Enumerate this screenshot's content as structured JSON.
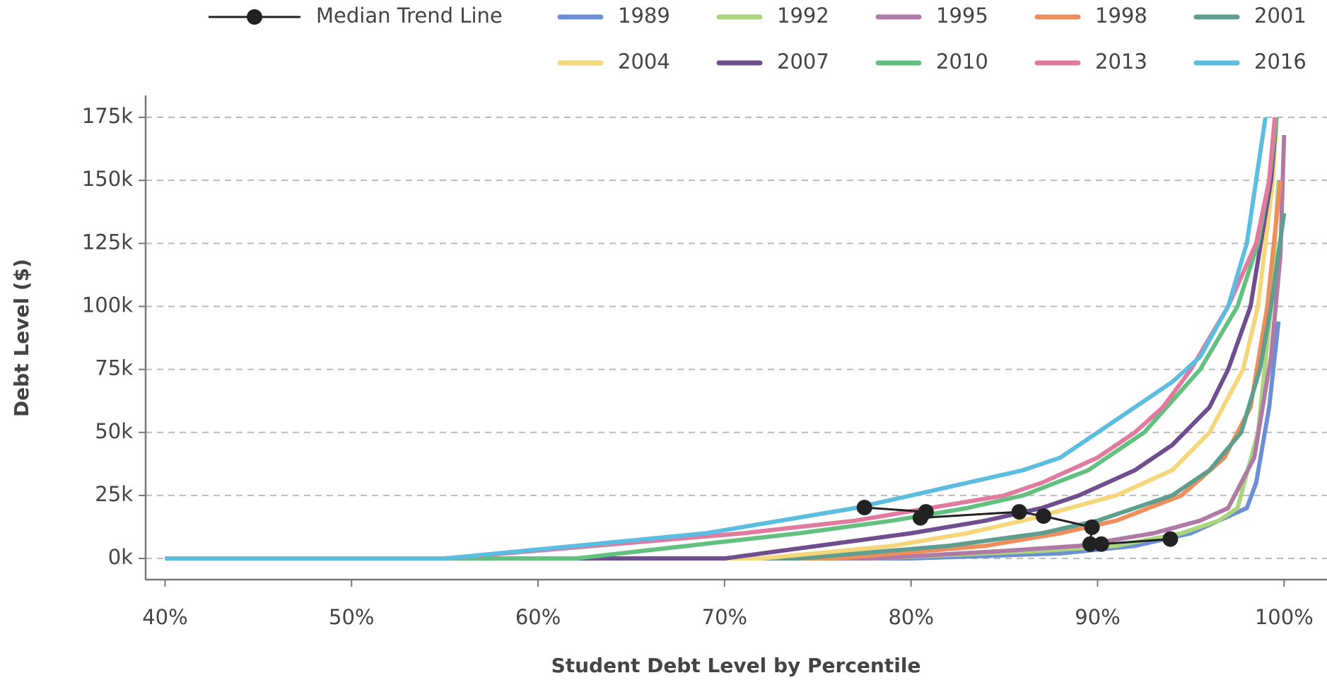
{
  "chart_data": {
    "type": "line",
    "x_label": "Student Debt Level by Percentile",
    "y_label": "Debt Level ($)",
    "xlim": [
      38.96,
      102.3
    ],
    "ylim": [
      -8400,
      183700
    ],
    "xticks": [
      {
        "value": 40,
        "label": "40%"
      },
      {
        "value": 50,
        "label": "50%"
      },
      {
        "value": 60,
        "label": "60%"
      },
      {
        "value": 70,
        "label": "70%"
      },
      {
        "value": 80,
        "label": "80%"
      },
      {
        "value": 90,
        "label": "90%"
      },
      {
        "value": 100,
        "label": "100%"
      }
    ],
    "yticks": [
      {
        "value": 0,
        "label": "0k"
      },
      {
        "value": 25000,
        "label": "25k"
      },
      {
        "value": 50000,
        "label": "50k"
      },
      {
        "value": 75000,
        "label": "75k"
      },
      {
        "value": 100000,
        "label": "100k"
      },
      {
        "value": 125000,
        "label": "125k"
      },
      {
        "value": 150000,
        "label": "150k"
      },
      {
        "value": 175000,
        "label": "175k"
      }
    ],
    "grid": true,
    "series": [
      {
        "name": "1989",
        "color": "#6a8fd4",
        "x": [
          40,
          80,
          88,
          92,
          95,
          98,
          98.5,
          99.2,
          99.7
        ],
        "values": [
          0,
          0,
          2000,
          5000,
          10000,
          20000,
          30000,
          60000,
          94000
        ]
      },
      {
        "name": "1992",
        "color": "#a9d67f",
        "x": [
          40,
          78,
          87,
          91,
          94.5,
          96.5,
          97.5,
          98.6,
          99.3,
          99.7
        ],
        "values": [
          0,
          0,
          3000,
          5000,
          10000,
          15000,
          20000,
          50000,
          100000,
          150000
        ]
      },
      {
        "name": "1995",
        "color": "#b07aa6",
        "x": [
          40,
          78,
          85,
          89,
          93,
          95.5,
          97,
          98.4,
          99.3,
          99.8,
          100
        ],
        "values": [
          0,
          0,
          3000,
          5000,
          10000,
          15000,
          20000,
          40000,
          80000,
          120000,
          168000
        ]
      },
      {
        "name": "1998",
        "color": "#ee8e5c",
        "x": [
          40,
          76,
          84,
          88,
          91,
          94.5,
          96.8,
          98.2,
          99.1,
          99.8
        ],
        "values": [
          0,
          0,
          5000,
          10000,
          15000,
          25000,
          40000,
          60000,
          100000,
          150000
        ]
      },
      {
        "name": "2001",
        "color": "#5f9e8f",
        "x": [
          40,
          74,
          82,
          87,
          90,
          94,
          96,
          97.7,
          98.7,
          99.3,
          100
        ],
        "values": [
          0,
          0,
          5000,
          10000,
          15000,
          25000,
          35000,
          50000,
          75000,
          100000,
          137000
        ]
      },
      {
        "name": "2004",
        "color": "#f6d67a",
        "x": [
          40,
          72,
          79,
          83,
          86,
          88.5,
          91,
          94,
          96,
          97.8,
          98.6,
          99.4,
          99.6
        ],
        "values": [
          0,
          0,
          5000,
          10000,
          15000,
          20000,
          25000,
          35000,
          50000,
          75000,
          100000,
          150000,
          175000
        ]
      },
      {
        "name": "2007",
        "color": "#6f4e8f",
        "x": [
          40,
          70,
          75,
          80,
          84,
          87,
          89,
          92,
          94,
          96,
          97,
          98.2,
          99.3,
          99.6
        ],
        "values": [
          0,
          0,
          5000,
          10000,
          15000,
          20000,
          25000,
          35000,
          45000,
          60000,
          75000,
          100000,
          150000,
          175000
        ]
      },
      {
        "name": "2010",
        "color": "#63c17f",
        "x": [
          40,
          62,
          68,
          74,
          79,
          83,
          86,
          89.5,
          92.5,
          95.5,
          97.5,
          98.6,
          99.2,
          99.6
        ],
        "values": [
          0,
          0,
          5000,
          10000,
          15000,
          20000,
          25000,
          35000,
          50000,
          75000,
          100000,
          125000,
          150000,
          175000
        ]
      },
      {
        "name": "2013",
        "color": "#e07a9e",
        "x": [
          40,
          55,
          63,
          71,
          77,
          81,
          85,
          87,
          90,
          92,
          93.5,
          95,
          97,
          98.5,
          99.2,
          99.5
        ],
        "values": [
          0,
          0,
          5000,
          10000,
          15000,
          20000,
          25000,
          30000,
          40000,
          50000,
          60000,
          75000,
          100000,
          125000,
          150000,
          175000
        ]
      },
      {
        "name": "2016",
        "color": "#5bbde0",
        "x": [
          40,
          55,
          62,
          69,
          77,
          80,
          83,
          86,
          88,
          90,
          92,
          94,
          95.5,
          97,
          98,
          98.5,
          99
        ],
        "values": [
          0,
          0,
          5000,
          10000,
          20000,
          25000,
          30000,
          35000,
          40000,
          50000,
          60000,
          70000,
          80000,
          100000,
          125000,
          150000,
          175000
        ]
      }
    ],
    "median_trend": {
      "name": "Median Trend Line",
      "color": "#222222",
      "x": [
        77.5,
        80.8,
        80.5,
        85.8,
        87.1,
        89.7,
        89.6,
        90.2,
        93.9
      ],
      "values": [
        20200,
        18500,
        16100,
        18500,
        16800,
        12400,
        5700,
        5700,
        7700
      ]
    }
  }
}
